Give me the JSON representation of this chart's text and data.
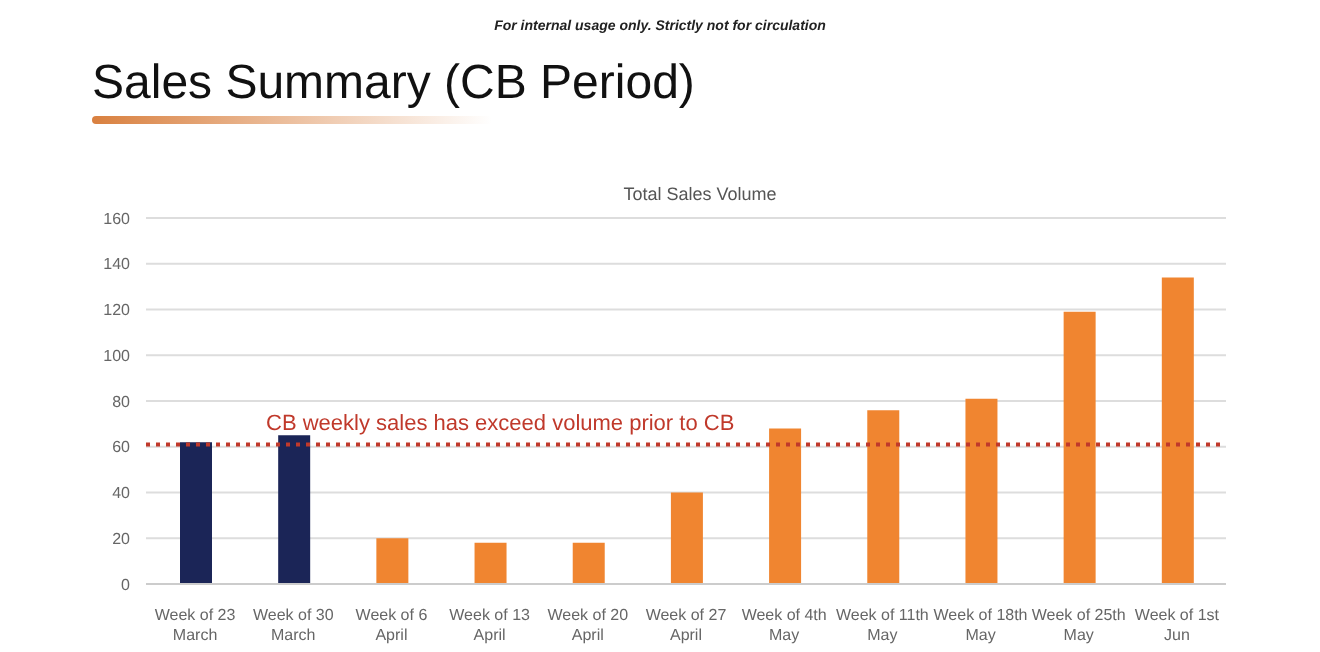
{
  "chart_data": {
    "type": "bar",
    "title": "Sales Summary (CB Period)",
    "subtitle": "Total Sales Volume",
    "annotations": [
      "For internal usage only. Strictly not for circulation"
    ],
    "categories": [
      "Week of 23 March",
      "Week of 30 March",
      "Week of 6 April",
      "Week of 13 April",
      "Week of 20 April",
      "Week of 27 April",
      "Week of 4th May",
      "Week of 11th May",
      "Week of 18th May",
      "Week of 25th May",
      "Week of 1st Jun"
    ],
    "values": [
      62,
      65,
      20,
      18,
      18,
      40,
      68,
      76,
      81,
      119,
      134
    ],
    "colors": [
      "#1b2557",
      "#1b2557",
      "#f08530",
      "#f08530",
      "#f08530",
      "#f08530",
      "#f08530",
      "#f08530",
      "#f08530",
      "#f08530",
      "#f08530"
    ],
    "ylim": [
      0,
      160
    ],
    "yticks": [
      0,
      20,
      40,
      60,
      80,
      100,
      120,
      140,
      160
    ],
    "grid": "y",
    "ref_lines": [
      {
        "axis": "y",
        "value": 61,
        "label": "CB weekly sales has exceed volume prior to CB",
        "color": "#c0392b",
        "line_style": "dotted"
      }
    ]
  }
}
